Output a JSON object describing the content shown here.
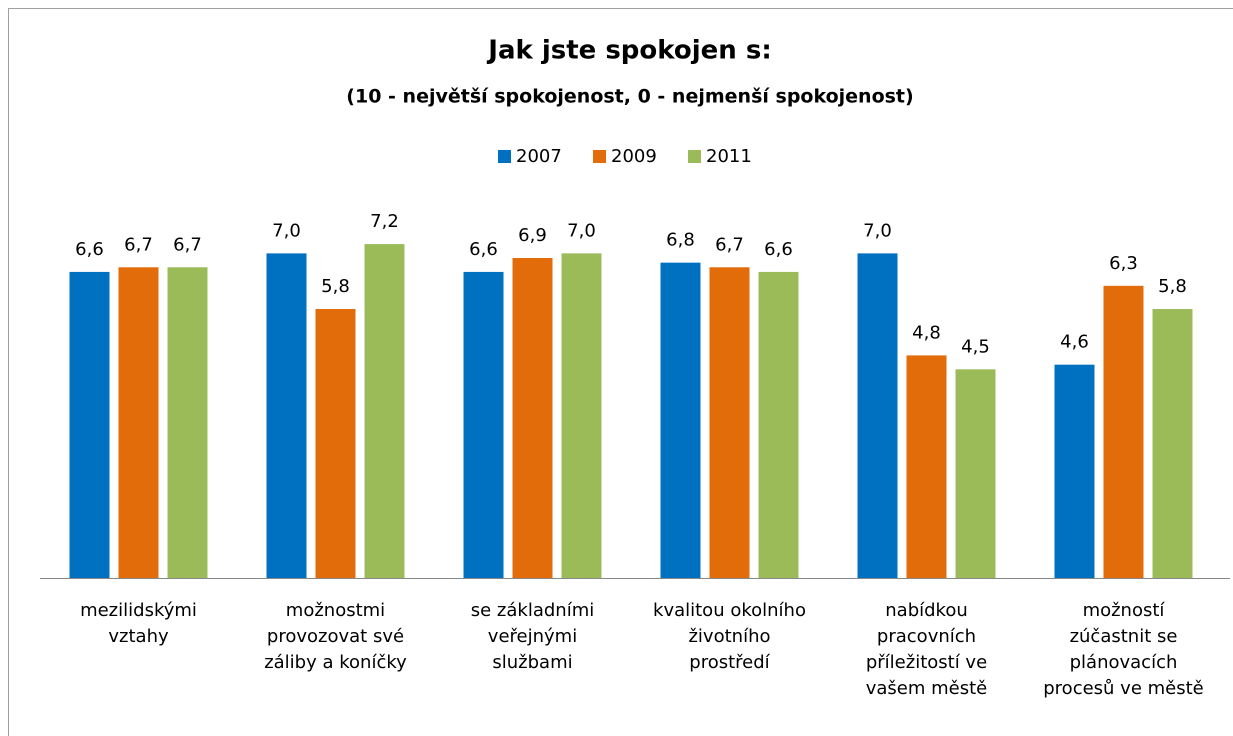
{
  "chart_data": {
    "type": "bar",
    "title": "Jak jste spokojen s:",
    "subtitle": "(10 -  největší spokojenost, 0 - nejmenší spokojenost)",
    "categories": [
      "mezilidskými vztahy",
      "možnostmi provozovat své záliby a koníčky",
      "se základními veřejnými službami",
      "kvalitou okolního životního prostředí",
      "nabídkou pracovních příležitostí ve vašem městě",
      "možností zúčastnit se plánovacích procesů ve městě"
    ],
    "series": [
      {
        "name": "2007",
        "color": "#0070c0",
        "values": [
          6.6,
          7.0,
          6.6,
          6.8,
          7.0,
          4.6
        ],
        "value_labels": [
          "6,6",
          "7,0",
          "6,6",
          "6,8",
          "7,0",
          "4,6"
        ]
      },
      {
        "name": "2009",
        "color": "#e36c0a",
        "values": [
          6.7,
          5.8,
          6.9,
          6.7,
          4.8,
          6.3
        ],
        "value_labels": [
          "6,7",
          "5,8",
          "6,9",
          "6,7",
          "4,8",
          "6,3"
        ]
      },
      {
        "name": "2011",
        "color": "#9bbb59",
        "values": [
          6.7,
          7.2,
          7.0,
          6.6,
          4.5,
          5.8
        ],
        "value_labels": [
          "6,7",
          "7,2",
          "7,0",
          "6,6",
          "4,5",
          "5,8"
        ]
      }
    ],
    "ylim": [
      0,
      8
    ],
    "legend": "top"
  }
}
